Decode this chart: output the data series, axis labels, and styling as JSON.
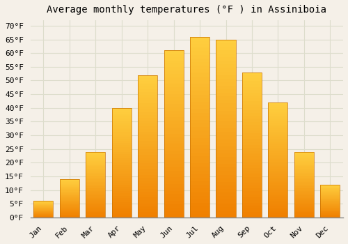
{
  "title": "Average monthly temperatures (°F ) in Assiniboia",
  "months": [
    "Jan",
    "Feb",
    "Mar",
    "Apr",
    "May",
    "Jun",
    "Jul",
    "Aug",
    "Sep",
    "Oct",
    "Nov",
    "Dec"
  ],
  "values": [
    6,
    14,
    24,
    40,
    52,
    61,
    66,
    65,
    53,
    42,
    24,
    12
  ],
  "bar_color_main": "#FFA500",
  "bar_color_top": "#FFD040",
  "bar_color_bottom": "#F08000",
  "bar_edge_color": "#C87000",
  "background_color": "#F5F0E8",
  "plot_bg_color": "#F5F0E8",
  "grid_color": "#DDDDCC",
  "ylim": [
    0,
    72
  ],
  "yticks": [
    0,
    5,
    10,
    15,
    20,
    25,
    30,
    35,
    40,
    45,
    50,
    55,
    60,
    65,
    70
  ],
  "title_fontsize": 10,
  "tick_fontsize": 8,
  "font_family": "monospace",
  "bar_width": 0.75
}
